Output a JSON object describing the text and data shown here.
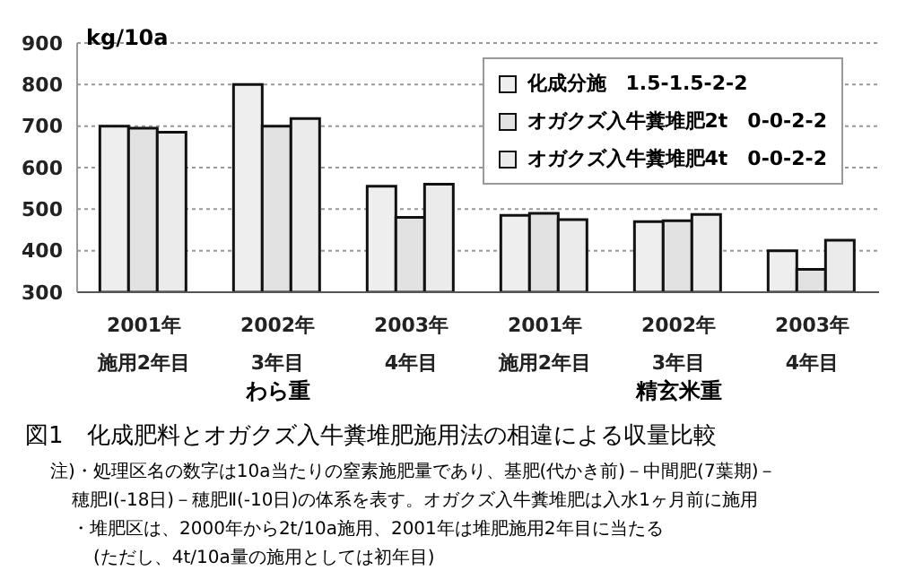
{
  "chart_data": {
    "type": "bar",
    "title": "図1　化成肥料とオガクズ入牛糞堆肥施用法の相違による収量比較",
    "ylabel": "kg/10a",
    "categories": [
      "2001年施用2年目",
      "2002年3年目",
      "2003年4年目",
      "2001年施用2年目",
      "2002年3年目",
      "2003年4年目"
    ],
    "series": [
      {
        "name": "化成分施　1.5-1.5-2-2",
        "color": "#eeeeee",
        "values": [
          700,
          800,
          555,
          485,
          470,
          400
        ]
      },
      {
        "name": "オガクズ入牛糞堆肥2t　0-0-2-2",
        "color": "#e2e2e2",
        "values": [
          695,
          700,
          480,
          490,
          472,
          355
        ]
      },
      {
        "name": "オガクズ入牛糞堆肥4t　0-0-2-2",
        "color": "#ebebeb",
        "values": [
          685,
          718,
          560,
          475,
          487,
          425
        ]
      }
    ],
    "ylim": [
      300,
      900
    ],
    "yticks": [
      300,
      400,
      500,
      600,
      700,
      800,
      900
    ],
    "grid": "y",
    "legend": "top right",
    "annotations": [
      "わら重",
      "精玄米重",
      "注)・処理区名の数字は10a当たりの窒素施肥量であり、基肥(代かき前)－中間肥(7葉期)－",
      "穂肥Ⅰ(-18日)－穂肥Ⅱ(-10日)の体系を表す。オガクズ入牛糞堆肥は入水1ヶ月前に施用",
      "・堆肥区は、2000年から2t/10a施用、2001年は堆肥施用2年目に当たる",
      "(ただし、4t/10a量の施用としては初年目)"
    ]
  }
}
